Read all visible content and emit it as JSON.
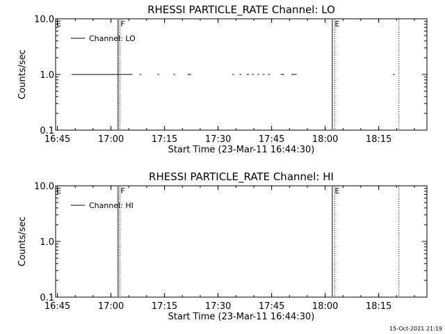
{
  "footer": "15-Oct-2021 21:19",
  "chart_data": [
    {
      "type": "line",
      "title": "RHESSI PARTICLE_RATE Channel: LO",
      "xlabel": "Start Time (23-Mar-11 16:44:30)",
      "ylabel": "Counts/sec",
      "x_ticks": [
        "16:45",
        "17:00",
        "17:15",
        "17:30",
        "17:45",
        "18:00",
        "18:15"
      ],
      "y_ticks": [
        "0.1",
        "1.0",
        "10.0"
      ],
      "yscale": "log",
      "ylim": [
        0.1,
        10.0
      ],
      "xlim": [
        "16:44:30",
        "18:28:30"
      ],
      "legend": {
        "label": "Channel: LO",
        "position": "top-left"
      },
      "flags": [
        {
          "label": "E",
          "x": "16:44:30"
        },
        {
          "label": "F",
          "x": "17:02:30"
        },
        {
          "label": "E",
          "x": "18:02:30"
        }
      ],
      "vlines": [
        {
          "x": "17:02:00",
          "style": "solid"
        },
        {
          "x": "17:02:30",
          "style": "dotted"
        },
        {
          "x": "18:02:00",
          "style": "solid"
        },
        {
          "x": "18:02:40",
          "style": "dotted"
        },
        {
          "x": "18:20:40",
          "style": "dotted"
        }
      ],
      "series": [
        {
          "name": "Channel: LO",
          "segments": [
            {
              "x": [
                "16:49:00",
                "17:06:00"
              ],
              "y": 1.0
            },
            {
              "x": [
                "17:08:00",
                "17:08:30"
              ],
              "y": 1.0
            },
            {
              "x": [
                "17:13:00",
                "17:13:30"
              ],
              "y": 1.0
            },
            {
              "x": [
                "17:17:30",
                "17:18:00"
              ],
              "y": 1.0
            },
            {
              "x": [
                "17:21:30",
                "17:22:30"
              ],
              "y": 1.0
            },
            {
              "x": [
                "17:34:00",
                "17:34:30"
              ],
              "y": 1.0
            },
            {
              "x": [
                "17:36:00",
                "17:36:30"
              ],
              "y": 1.0
            },
            {
              "x": [
                "17:38:00",
                "17:38:40"
              ],
              "y": 1.0
            },
            {
              "x": [
                "17:39:30",
                "17:40:00"
              ],
              "y": 1.0
            },
            {
              "x": [
                "17:41:00",
                "17:41:30"
              ],
              "y": 1.0
            },
            {
              "x": [
                "17:42:30",
                "17:43:00"
              ],
              "y": 1.0
            },
            {
              "x": [
                "17:44:00",
                "17:44:30"
              ],
              "y": 1.0
            },
            {
              "x": [
                "17:47:30",
                "17:48:30"
              ],
              "y": 1.0
            },
            {
              "x": [
                "17:50:30",
                "17:52:00"
              ],
              "y": 1.0
            },
            {
              "x": [
                "18:19:00",
                "18:19:30"
              ],
              "y": 1.0
            }
          ]
        }
      ]
    },
    {
      "type": "line",
      "title": "RHESSI PARTICLE_RATE Channel: HI",
      "xlabel": "Start Time (23-Mar-11 16:44:30)",
      "ylabel": "Counts/sec",
      "x_ticks": [
        "16:45",
        "17:00",
        "17:15",
        "17:30",
        "17:45",
        "18:00",
        "18:15"
      ],
      "y_ticks": [
        "0.1",
        "1.0",
        "10.0"
      ],
      "yscale": "log",
      "ylim": [
        0.1,
        10.0
      ],
      "xlim": [
        "16:44:30",
        "18:28:30"
      ],
      "legend": {
        "label": "Channel: HI",
        "position": "top-left"
      },
      "flags": [
        {
          "label": "E",
          "x": "16:44:30"
        },
        {
          "label": "F",
          "x": "17:02:30"
        },
        {
          "label": "E",
          "x": "18:02:30"
        }
      ],
      "vlines": [
        {
          "x": "17:02:00",
          "style": "solid"
        },
        {
          "x": "17:02:30",
          "style": "dotted"
        },
        {
          "x": "18:02:00",
          "style": "solid"
        },
        {
          "x": "18:02:40",
          "style": "dotted"
        },
        {
          "x": "18:20:40",
          "style": "dotted"
        }
      ],
      "series": [
        {
          "name": "Channel: HI",
          "segments": []
        }
      ]
    }
  ]
}
